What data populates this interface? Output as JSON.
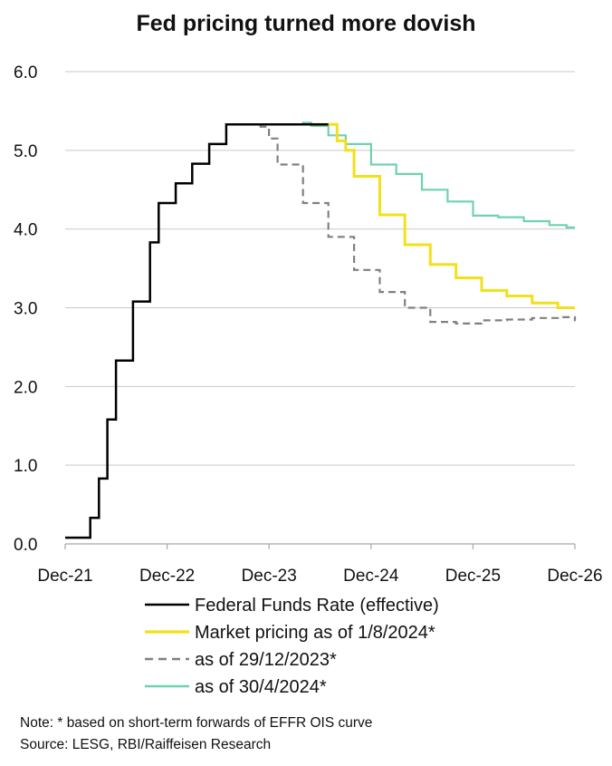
{
  "chart_data": {
    "type": "line",
    "title": "Fed pricing turned more dovish",
    "xlabel": "",
    "ylabel": "",
    "x_tick_labels": [
      "Dec-21",
      "Dec-22",
      "Dec-23",
      "Dec-24",
      "Dec-25",
      "Dec-26"
    ],
    "y_tick_labels": [
      "0.0",
      "1.0",
      "2.0",
      "3.0",
      "4.0",
      "5.0",
      "6.0"
    ],
    "ylim": [
      0,
      6
    ],
    "grid": true,
    "legend_position": "bottom",
    "series": [
      {
        "name": "Federal Funds Rate (effective)",
        "color": "#000000",
        "style": "solid",
        "step": true,
        "x": [
          "2021-12-01",
          "2022-03-01",
          "2022-04-01",
          "2022-05-01",
          "2022-06-01",
          "2022-07-01",
          "2022-08-01",
          "2022-09-01",
          "2022-10-01",
          "2022-11-01",
          "2022-12-01",
          "2023-01-01",
          "2023-02-01",
          "2023-03-01",
          "2023-04-01",
          "2023-05-01",
          "2023-06-01",
          "2023-07-01",
          "2023-08-01",
          "2023-09-01",
          "2023-10-01",
          "2023-11-01",
          "2023-12-01",
          "2024-01-01",
          "2024-02-01",
          "2024-03-01",
          "2024-04-01",
          "2024-05-01",
          "2024-06-01",
          "2024-07-01"
        ],
        "values": [
          0.08,
          0.33,
          0.83,
          1.58,
          2.33,
          2.33,
          3.08,
          3.08,
          3.83,
          4.33,
          4.33,
          4.58,
          4.58,
          4.83,
          4.83,
          5.08,
          5.08,
          5.33,
          5.33,
          5.33,
          5.33,
          5.33,
          5.33,
          5.33,
          5.33,
          5.33,
          5.33,
          5.33,
          5.33,
          5.33
        ]
      },
      {
        "name": "Market pricing as of 1/8/2024*",
        "color": "#f2e01a",
        "style": "solid",
        "step": true,
        "x": [
          "2024-05-01",
          "2024-06-01",
          "2024-07-01",
          "2024-08-01",
          "2024-09-01",
          "2024-10-01",
          "2024-11-01",
          "2024-12-01",
          "2025-01-01",
          "2025-02-01",
          "2025-03-01",
          "2025-04-01",
          "2025-05-01",
          "2025-06-01",
          "2025-07-01",
          "2025-08-01",
          "2025-09-01",
          "2025-10-01",
          "2025-11-01",
          "2025-12-01",
          "2026-01-01",
          "2026-02-01",
          "2026-03-01",
          "2026-04-01",
          "2026-05-01",
          "2026-06-01",
          "2026-07-01",
          "2026-08-01",
          "2026-09-01",
          "2026-10-01",
          "2026-11-01",
          "2026-12-01"
        ],
        "values": [
          5.33,
          5.33,
          5.33,
          5.12,
          5.0,
          4.67,
          4.67,
          4.67,
          4.18,
          4.18,
          4.18,
          3.8,
          3.8,
          3.8,
          3.55,
          3.55,
          3.55,
          3.38,
          3.38,
          3.38,
          3.22,
          3.22,
          3.22,
          3.15,
          3.15,
          3.15,
          3.06,
          3.06,
          3.06,
          3.0,
          3.0,
          3.0
        ]
      },
      {
        "name": "as of 29/12/2023*",
        "color": "#808080",
        "style": "dashed",
        "step": true,
        "x": [
          "2023-07-01",
          "2023-08-01",
          "2023-09-01",
          "2023-10-01",
          "2023-11-01",
          "2023-12-01",
          "2024-01-01",
          "2024-02-01",
          "2024-03-01",
          "2024-04-01",
          "2024-05-01",
          "2024-06-01",
          "2024-07-01",
          "2024-08-01",
          "2024-09-01",
          "2024-10-01",
          "2024-11-01",
          "2024-12-01",
          "2025-01-01",
          "2025-02-01",
          "2025-03-01",
          "2025-04-01",
          "2025-05-01",
          "2025-06-01",
          "2025-07-01",
          "2025-08-01",
          "2025-09-01",
          "2025-10-01",
          "2025-11-01",
          "2025-12-01",
          "2026-01-01",
          "2026-02-01",
          "2026-03-01",
          "2026-04-01",
          "2026-05-01",
          "2026-06-01",
          "2026-07-01",
          "2026-08-01",
          "2026-09-01",
          "2026-10-01",
          "2026-11-01",
          "2026-12-01"
        ],
        "values": [
          5.33,
          5.33,
          5.33,
          5.33,
          5.3,
          5.15,
          4.82,
          4.82,
          4.82,
          4.33,
          4.33,
          4.33,
          3.9,
          3.9,
          3.9,
          3.48,
          3.48,
          3.48,
          3.2,
          3.2,
          3.2,
          3.0,
          3.0,
          3.0,
          2.82,
          2.82,
          2.82,
          2.8,
          2.8,
          2.8,
          2.84,
          2.84,
          2.84,
          2.85,
          2.85,
          2.85,
          2.87,
          2.87,
          2.87,
          2.88,
          2.88,
          2.83
        ]
      },
      {
        "name": "as of 30/4/2024*",
        "color": "#6fd1b3",
        "style": "solid",
        "step": true,
        "x": [
          "2024-03-01",
          "2024-04-01",
          "2024-05-01",
          "2024-06-01",
          "2024-07-01",
          "2024-08-01",
          "2024-09-01",
          "2024-10-01",
          "2024-11-01",
          "2024-12-01",
          "2025-01-01",
          "2025-02-01",
          "2025-03-01",
          "2025-04-01",
          "2025-05-01",
          "2025-06-01",
          "2025-07-01",
          "2025-08-01",
          "2025-09-01",
          "2025-10-01",
          "2025-11-01",
          "2025-12-01",
          "2026-01-01",
          "2026-02-01",
          "2026-03-01",
          "2026-04-01",
          "2026-05-01",
          "2026-06-01",
          "2026-07-01",
          "2026-08-01",
          "2026-09-01",
          "2026-10-01",
          "2026-11-01",
          "2026-12-01"
        ],
        "values": [
          5.33,
          5.35,
          5.31,
          5.31,
          5.19,
          5.19,
          5.08,
          5.08,
          5.08,
          4.82,
          4.82,
          4.82,
          4.7,
          4.7,
          4.7,
          4.5,
          4.5,
          4.5,
          4.35,
          4.35,
          4.35,
          4.17,
          4.17,
          4.17,
          4.15,
          4.15,
          4.15,
          4.1,
          4.1,
          4.1,
          4.05,
          4.05,
          4.02,
          4.02
        ]
      }
    ]
  },
  "footnotes": {
    "note": "Note: * based on short-term forwards of EFFR OIS curve",
    "source": "Source: LESG, RBI/Raiffeisen Research"
  }
}
